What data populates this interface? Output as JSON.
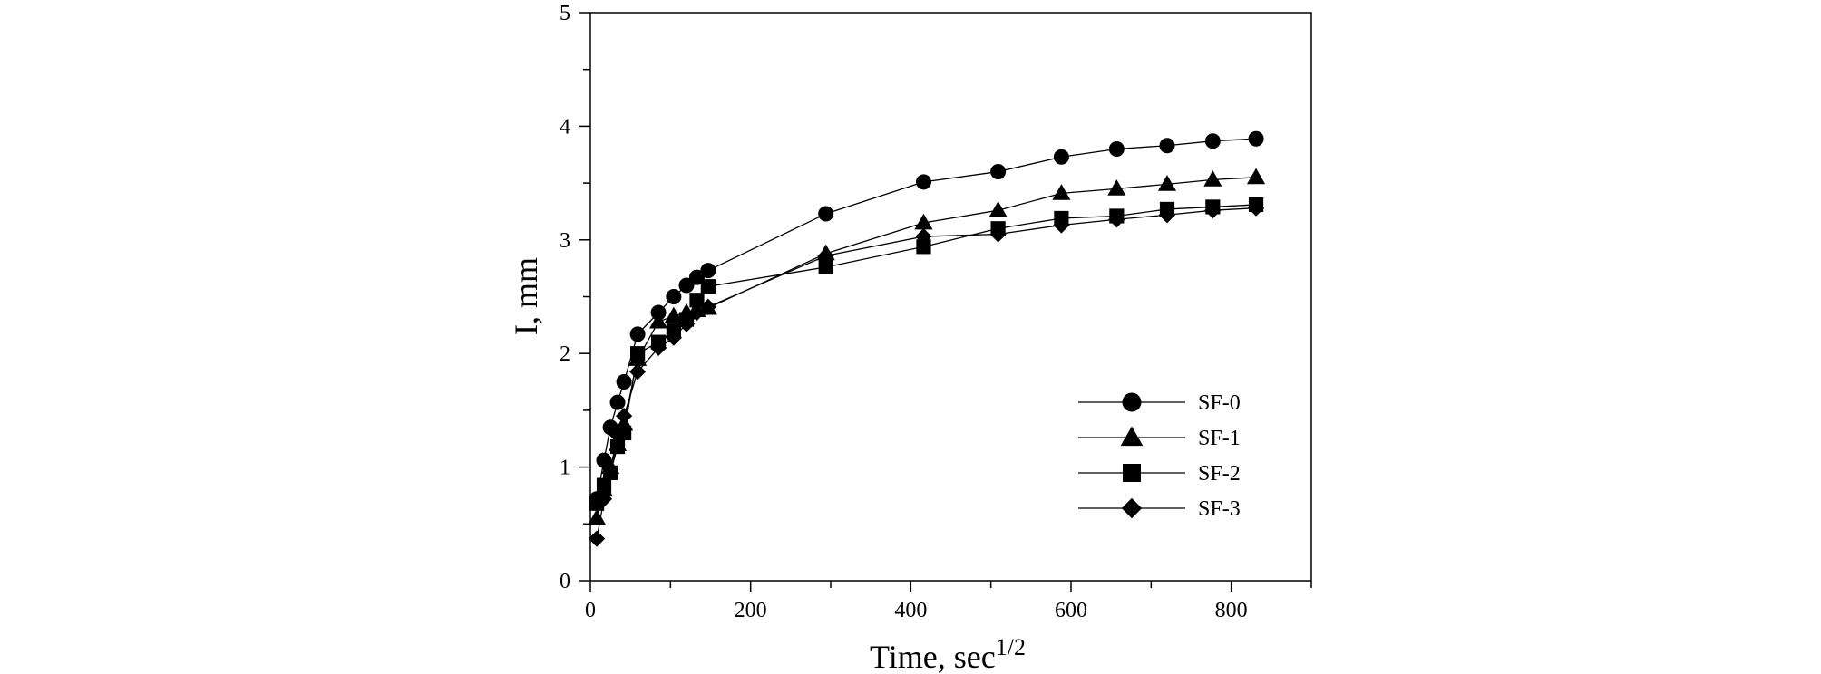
{
  "chart_data": {
    "type": "line",
    "xlabel": "Time, sec",
    "xlabel_superscript": "1/2",
    "ylabel": "I, mm",
    "xlim": [
      0,
      900
    ],
    "ylim": [
      0,
      5
    ],
    "xticks": [
      0,
      200,
      400,
      600,
      800
    ],
    "yticks": [
      0,
      1,
      2,
      3,
      4,
      5
    ],
    "grid": false,
    "legend_position": "bottom-right",
    "line_color": "#000000",
    "series": [
      {
        "name": "SF-0",
        "marker": "circle",
        "x": [
          8,
          17,
          25,
          34,
          42,
          59,
          85,
          104,
          120,
          133,
          147,
          294,
          416,
          509,
          588,
          657,
          720,
          777,
          831
        ],
        "y": [
          0.72,
          1.06,
          1.35,
          1.57,
          1.75,
          2.17,
          2.36,
          2.5,
          2.6,
          2.67,
          2.73,
          3.23,
          3.51,
          3.6,
          3.73,
          3.8,
          3.83,
          3.87,
          3.89
        ]
      },
      {
        "name": "SF-1",
        "marker": "triangle",
        "x": [
          8,
          17,
          25,
          34,
          42,
          59,
          85,
          104,
          120,
          133,
          147,
          294,
          416,
          509,
          588,
          657,
          720,
          777,
          831
        ],
        "y": [
          0.55,
          0.8,
          1.0,
          1.2,
          1.38,
          1.95,
          2.28,
          2.33,
          2.36,
          2.38,
          2.4,
          2.88,
          3.15,
          3.26,
          3.41,
          3.45,
          3.49,
          3.53,
          3.55
        ]
      },
      {
        "name": "SF-2",
        "marker": "square",
        "x": [
          8,
          17,
          25,
          34,
          42,
          59,
          85,
          104,
          120,
          133,
          147,
          294,
          416,
          509,
          588,
          657,
          720,
          777,
          831
        ],
        "y": [
          0.68,
          0.84,
          0.95,
          1.18,
          1.3,
          2.0,
          2.1,
          2.2,
          2.3,
          2.47,
          2.59,
          2.76,
          2.94,
          3.1,
          3.19,
          3.21,
          3.27,
          3.29,
          3.31
        ]
      },
      {
        "name": "SF-3",
        "marker": "diamond",
        "x": [
          8,
          17,
          25,
          34,
          42,
          59,
          85,
          104,
          120,
          133,
          147,
          294,
          416,
          509,
          588,
          657,
          720,
          777,
          831
        ],
        "y": [
          0.37,
          0.72,
          0.98,
          1.28,
          1.45,
          1.84,
          2.05,
          2.14,
          2.26,
          2.36,
          2.41,
          2.86,
          3.03,
          3.05,
          3.13,
          3.18,
          3.22,
          3.26,
          3.28
        ]
      }
    ]
  }
}
